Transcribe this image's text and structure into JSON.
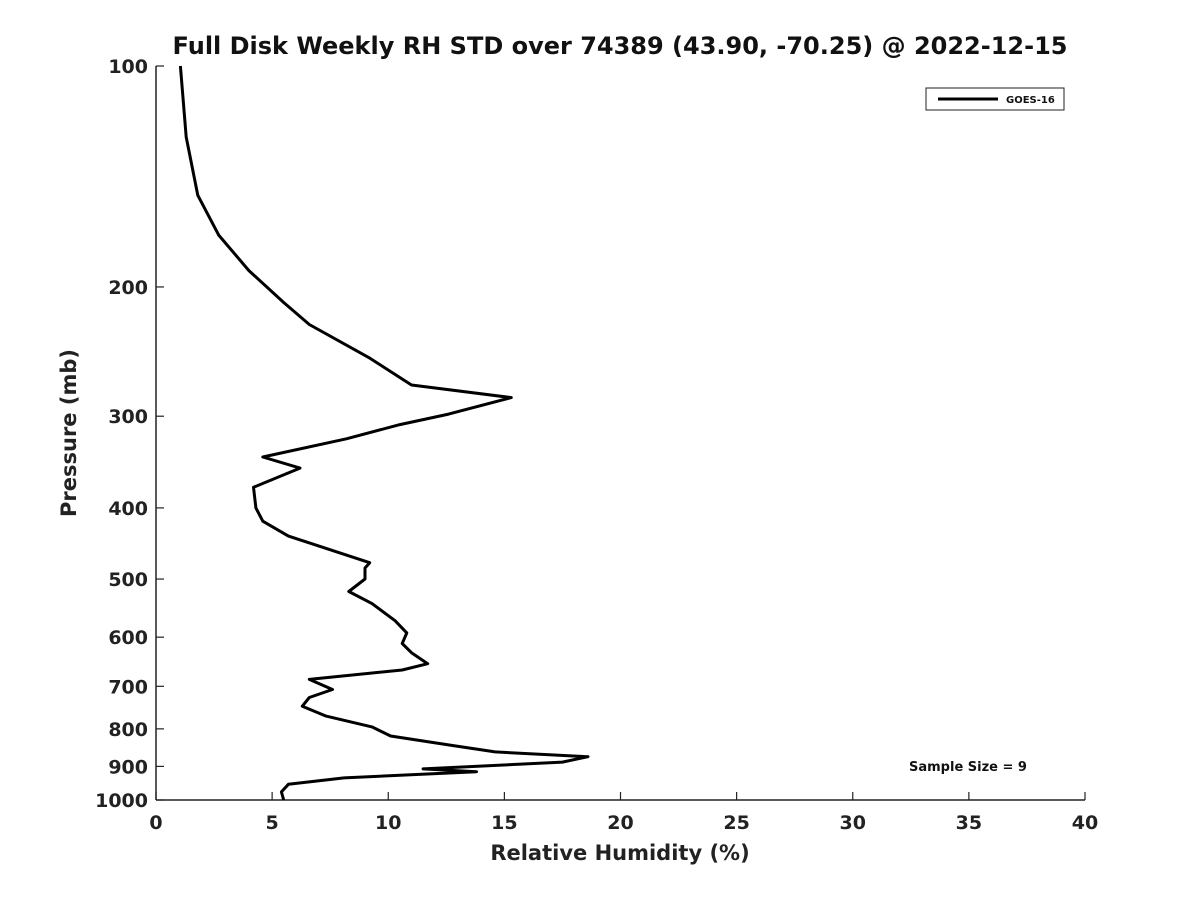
{
  "chart_data": {
    "type": "line",
    "title": "Full Disk Weekly RH STD over 74389 (43.90, -70.25) @ 2022-12-15",
    "xlabel": "Relative Humidity (%)",
    "ylabel": "Pressure (mb)",
    "xlim": [
      0,
      40
    ],
    "ylim": [
      100,
      1000
    ],
    "y_scale": "log",
    "y_reversed": true,
    "x_ticks": [
      0,
      5,
      10,
      15,
      20,
      25,
      30,
      35,
      40
    ],
    "y_ticks": [
      100,
      200,
      300,
      400,
      500,
      600,
      700,
      800,
      900,
      1000
    ],
    "grid": false,
    "legend_position": "top-right",
    "series": [
      {
        "name": "GOES-16",
        "color": "#000000",
        "points": [
          [
            1.05,
            100
          ],
          [
            1.3,
            125
          ],
          [
            1.8,
            150
          ],
          [
            2.7,
            170
          ],
          [
            4.0,
            190
          ],
          [
            5.5,
            210
          ],
          [
            6.6,
            225
          ],
          [
            9.2,
            250
          ],
          [
            11.0,
            272
          ],
          [
            15.3,
            283
          ],
          [
            12.6,
            298
          ],
          [
            10.5,
            308
          ],
          [
            8.2,
            322
          ],
          [
            4.6,
            341
          ],
          [
            6.2,
            353
          ],
          [
            4.2,
            375
          ],
          [
            4.3,
            400
          ],
          [
            4.6,
            417
          ],
          [
            5.7,
            437
          ],
          [
            9.2,
            475
          ],
          [
            9.0,
            483
          ],
          [
            9.0,
            500
          ],
          [
            8.3,
            520
          ],
          [
            9.3,
            540
          ],
          [
            10.3,
            570
          ],
          [
            10.8,
            592
          ],
          [
            10.6,
            612
          ],
          [
            11.0,
            630
          ],
          [
            11.7,
            652
          ],
          [
            10.6,
            665
          ],
          [
            6.6,
            685
          ],
          [
            7.6,
            707
          ],
          [
            6.6,
            725
          ],
          [
            6.3,
            745
          ],
          [
            7.3,
            768
          ],
          [
            9.3,
            795
          ],
          [
            10.1,
            818
          ],
          [
            12.8,
            843
          ],
          [
            14.6,
            860
          ],
          [
            18.6,
            873
          ],
          [
            17.5,
            888
          ],
          [
            11.5,
            907
          ],
          [
            13.8,
            915
          ],
          [
            8.1,
            933
          ],
          [
            5.7,
            952
          ],
          [
            5.4,
            975
          ],
          [
            5.5,
            1000
          ]
        ]
      }
    ],
    "annotations": [
      "Sample Size = 9"
    ]
  },
  "colors": {
    "line": "#000000",
    "axis": "#222222",
    "background": "#ffffff"
  }
}
